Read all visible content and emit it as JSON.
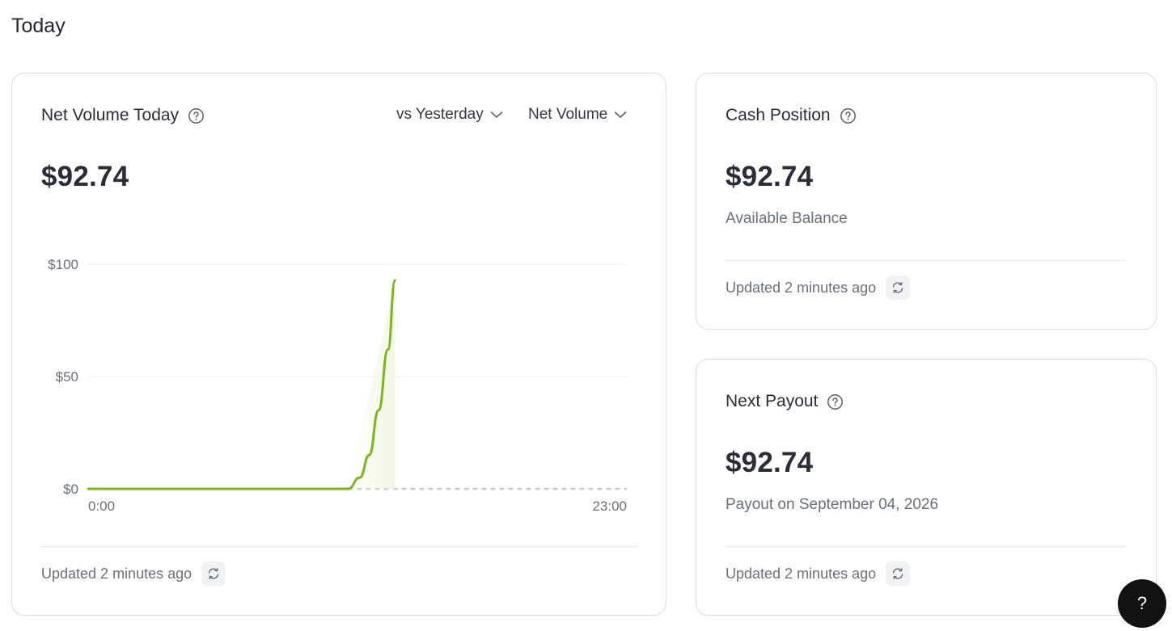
{
  "page": {
    "title": "Today"
  },
  "net_volume_card": {
    "title": "Net Volume Today",
    "value": "$92.74",
    "compare_dropdown": "vs Yesterday",
    "metric_dropdown": "Net Volume",
    "footer": "Updated 2 minutes ago"
  },
  "cash_position_card": {
    "title": "Cash Position",
    "value": "$92.74",
    "subtitle": "Available Balance",
    "footer": "Updated 2 minutes ago"
  },
  "next_payout_card": {
    "title": "Next Payout",
    "value": "$92.74",
    "subtitle": "Payout on September 04, 2026",
    "footer": "Updated 2 minutes ago"
  },
  "help_fab": {
    "label": "?"
  },
  "colors": {
    "series_today": "#7cb518",
    "series_yesterday": "#c8c9ce",
    "gridline": "#ececef",
    "axis_text": "#6b6f7c"
  },
  "chart_data": {
    "type": "line",
    "xlabel": "",
    "ylabel": "",
    "y_ticks": [
      "$100",
      "$50",
      "$0"
    ],
    "y_tick_values": [
      100,
      50,
      0
    ],
    "x_tick_labels": [
      "0:00",
      "23:00"
    ],
    "xlim": [
      0,
      23
    ],
    "ylim": [
      0,
      100
    ],
    "grid": true,
    "series": [
      {
        "key": "today",
        "x": [
          0,
          2,
          4,
          6,
          8,
          10,
          11.1,
          11.6,
          12.0,
          12.4,
          12.8,
          13.1
        ],
        "y": [
          0,
          0,
          0,
          0,
          0,
          0,
          0,
          5,
          15,
          35,
          62,
          92.74
        ]
      },
      {
        "key": "yesterday",
        "x": [
          11.1,
          23
        ],
        "y": [
          0,
          0
        ]
      }
    ]
  }
}
